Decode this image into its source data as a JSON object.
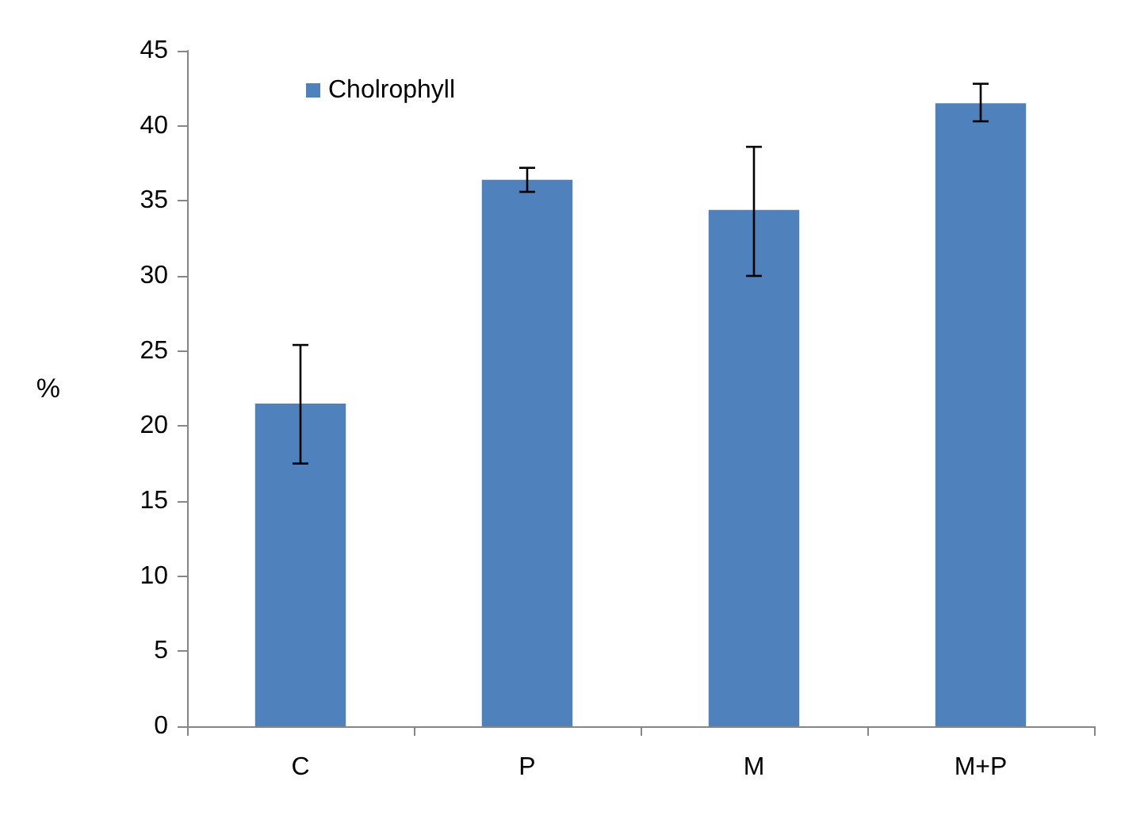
{
  "chart_data": {
    "type": "bar",
    "ylabel": "%",
    "categories": [
      "C",
      "P",
      "M",
      "M+P"
    ],
    "series": [
      {
        "name": "Cholrophyll",
        "color": "#4f81bd",
        "values": [
          21.5,
          36.4,
          34.4,
          41.5
        ],
        "errors": [
          [
            17.5,
            25.4
          ],
          [
            35.6,
            37.2
          ],
          [
            30.0,
            38.6
          ],
          [
            40.3,
            42.8
          ]
        ]
      }
    ],
    "ylim": [
      0,
      45
    ],
    "yticks": [
      0,
      5,
      10,
      15,
      20,
      25,
      30,
      35,
      40,
      45
    ],
    "grid": false,
    "legend": "top left"
  }
}
